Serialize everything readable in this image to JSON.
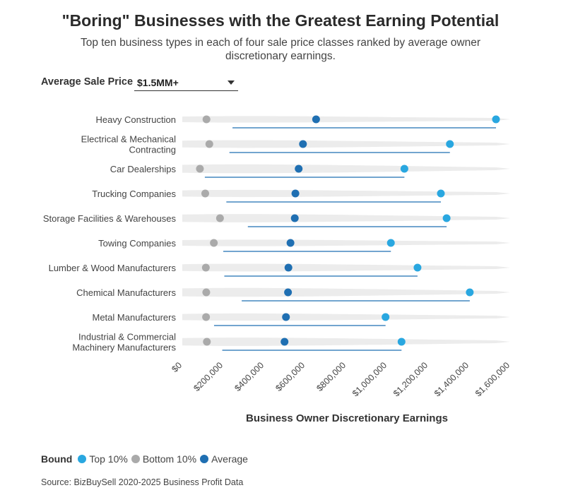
{
  "title": "\"Boring\" Businesses with the Greatest Earning Potential",
  "subtitle": "Top ten business types in each of four sale price classes ranked by average owner discretionary earnings.",
  "filter": {
    "label": "Average Sale Price",
    "value": "$1.5MM+"
  },
  "legend": {
    "title": "Bound",
    "items": [
      {
        "label": "Top 10%",
        "color": "#29a7e0"
      },
      {
        "label": "Bottom 10%",
        "color": "#aaaaaa"
      },
      {
        "label": "Average",
        "color": "#1f6fb2"
      }
    ]
  },
  "source": "Source: BizBuySell 2020-2025 Business Profit Data",
  "colors": {
    "top": "#29a7e0",
    "bottom": "#aaaaaa",
    "average": "#1f6fb2",
    "band": "#ececec",
    "line": "#1f6fb2"
  },
  "chart_data": {
    "type": "dot-range",
    "xlabel": "Business Owner Discretionary Earnings",
    "xlim": [
      0,
      1600000
    ],
    "x_ticks": [
      {
        "value": 0,
        "label": "$0"
      },
      {
        "value": 200000,
        "label": "$200,000"
      },
      {
        "value": 400000,
        "label": "$400,000"
      },
      {
        "value": 600000,
        "label": "$600,000"
      },
      {
        "value": 800000,
        "label": "$800,000"
      },
      {
        "value": 1000000,
        "label": "$1,000,000"
      },
      {
        "value": 1200000,
        "label": "$1,200,000"
      },
      {
        "value": 1400000,
        "label": "$1,400,000"
      },
      {
        "value": 1600000,
        "label": "$1,600,000"
      }
    ],
    "categories": [
      [
        "Heavy Construction"
      ],
      [
        "Electrical & Mechanical",
        "Contracting"
      ],
      [
        "Car Dealerships"
      ],
      [
        "Trucking Companies"
      ],
      [
        "Storage Facilities & Warehouses"
      ],
      [
        "Towing Companies"
      ],
      [
        "Lumber & Wood Manufacturers"
      ],
      [
        "Chemical Manufacturers"
      ],
      [
        "Metal Manufacturers"
      ],
      [
        "Industrial & Commercial",
        "Machinery Manufacturers"
      ]
    ],
    "series": [
      {
        "name": "Bottom 10%",
        "values": [
          118000,
          132000,
          86000,
          112000,
          184000,
          154000,
          115000,
          117000,
          116000,
          120000
        ]
      },
      {
        "name": "Average",
        "values": [
          653000,
          589000,
          568000,
          552000,
          549000,
          528000,
          518000,
          516000,
          506000,
          499000
        ]
      },
      {
        "name": "Top 10%",
        "values": [
          1531000,
          1306000,
          1084000,
          1262000,
          1290000,
          1018000,
          1148000,
          1403000,
          992000,
          1070000
        ]
      }
    ],
    "range_lines": [
      [
        245000,
        1531000
      ],
      [
        230000,
        1306000
      ],
      [
        110000,
        1084000
      ],
      [
        215000,
        1262000
      ],
      [
        320000,
        1290000
      ],
      [
        200000,
        1018000
      ],
      [
        205000,
        1148000
      ],
      [
        290000,
        1403000
      ],
      [
        155000,
        992000
      ],
      [
        195000,
        1070000
      ]
    ]
  }
}
